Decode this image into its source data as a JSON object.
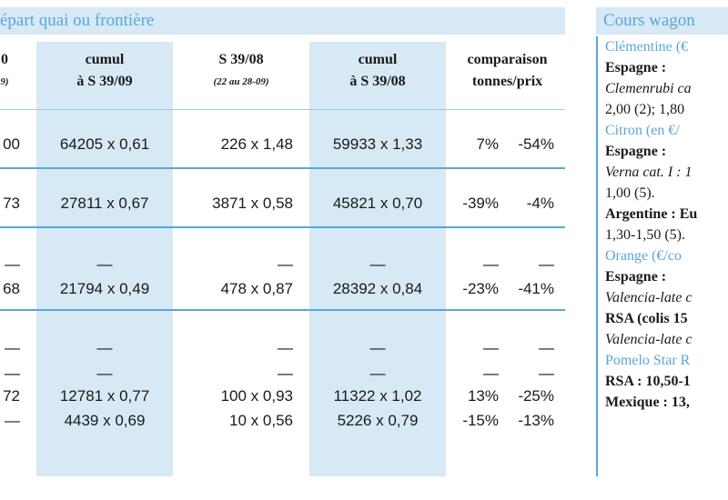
{
  "left_header": "épart quai ou frontière",
  "right_header": "Cours wagon",
  "columns": [
    {
      "title": "0",
      "sub": "9)"
    },
    {
      "title": "cumul",
      "sub": "à S 39/09"
    },
    {
      "title": "S 39/08",
      "sub": "(22 au 28-09)"
    },
    {
      "title": "cumul",
      "sub": "à S 39/08"
    },
    {
      "title": "comparaison",
      "sub": "tonnes/prix"
    }
  ],
  "rows": [
    {
      "c0": "00",
      "c1": "64205 x 0,61",
      "c2": "226 x 1,48",
      "c3": "59933 x 1,33",
      "pct_t": "7%",
      "pct_p": "-54%"
    },
    {
      "c0": "73",
      "c1": "27811 x 0,67",
      "c2": "3871 x 0,58",
      "c3": "45821 x 0,70",
      "pct_t": "-39%",
      "pct_p": "-4%"
    },
    {
      "c0": "68",
      "c1": "21794 x 0,49",
      "c2": "478 x 0,87",
      "c3": "28392 x 0,84",
      "pct_t": "-23%",
      "pct_p": "-41%"
    },
    {
      "c0": "72",
      "c1": "12781 x 0,77",
      "c2": "100 x 0,93",
      "c3": "11322 x 1,02",
      "pct_t": "13%",
      "pct_p": "-25%"
    },
    {
      "c0": "—",
      "c1": "4439 x 0,69",
      "c2": "10 x 0,56",
      "c3": "5226 x 0,79",
      "pct_t": "-15%",
      "pct_p": "-13%"
    }
  ],
  "dash": "—",
  "panel": {
    "clementine": "Clémentine (€",
    "espagne1": "Espagne :",
    "clem_line1": "Clemenrubi ca",
    "clem_line2": "2,00 (2); 1,80",
    "citron": "Citron (en €/",
    "espagne2": "Espagne :",
    "citron_line1": "Verna cat. I : 1",
    "citron_line2": "1,00 (5).",
    "argentine": "Argentine : Eu",
    "argentine_line": "1,30-1,50 (5).",
    "orange": "Orange (€/co",
    "espagne3": "Espagne :",
    "orange_line1": "Valencia-late c",
    "rsa1": "RSA (colis 15",
    "orange_line2": "Valencia-late c",
    "pomelo": "Pomelo Star R",
    "rsa2": "RSA : 10,50-1",
    "mexique": "Mexique : 13,"
  }
}
